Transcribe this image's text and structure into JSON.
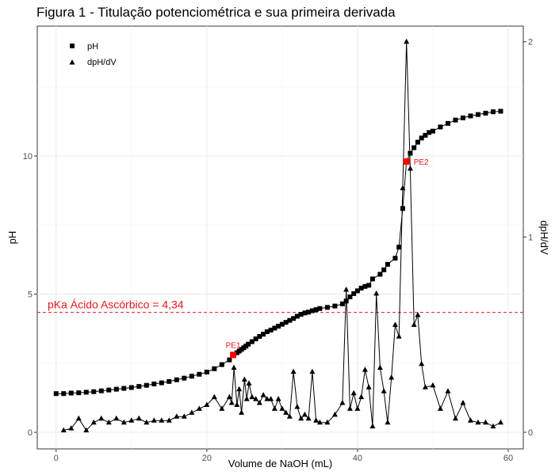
{
  "title": "Figura 1 - Titulação potenciométrica e sua primeira derivada",
  "chart_data": {
    "type": "line",
    "xlabel": "Volume de NaOH (mL)",
    "ylabel": "pH",
    "ylabel_right": "dpH/dV",
    "xlim": [
      -2.5,
      62
    ],
    "ylim": [
      -0.6,
      14.7
    ],
    "ylim_right": [
      -0.085,
      2.08
    ],
    "x_ticks": [
      0,
      20,
      40,
      60
    ],
    "y_ticks": [
      0,
      5,
      10
    ],
    "y_ticks_right": [
      0,
      1,
      2
    ],
    "grid": true,
    "legend": {
      "position": "top-left",
      "entries": [
        {
          "label": "pH",
          "marker": "square"
        },
        {
          "label": "dpH/dV",
          "marker": "triangle"
        }
      ]
    },
    "hline": {
      "y": 4.34,
      "label": "pKa Ácido Ascórbico = 4,34",
      "color": "#e41a1c"
    },
    "points": [
      {
        "label": "PE1",
        "x": 23.5,
        "y": 2.8,
        "color": "#ff0000"
      },
      {
        "label": "PE2",
        "x": 46.5,
        "y": 9.8,
        "color": "#ff0000"
      }
    ],
    "series": [
      {
        "name": "pH",
        "marker": "square",
        "axis": "left",
        "x": [
          0,
          1,
          2,
          3,
          4,
          5,
          6,
          7,
          8,
          9,
          10,
          11,
          12,
          13,
          14,
          15,
          16,
          17,
          18,
          19,
          20,
          21,
          22,
          23,
          23.5,
          24,
          24.3,
          24.6,
          24.9,
          25.2,
          25.5,
          26,
          26.5,
          27,
          27.5,
          28,
          28.5,
          29,
          29.5,
          30,
          30.5,
          31,
          31.5,
          32,
          32.5,
          33,
          33.5,
          34,
          34.5,
          35,
          36,
          37,
          38,
          38.5,
          39,
          39.5,
          40,
          40.5,
          41,
          41.5,
          42,
          43,
          43.5,
          44,
          45,
          45.5,
          46,
          46.5,
          47,
          47.5,
          48,
          48.5,
          49,
          49.5,
          50,
          51,
          52,
          53,
          54,
          55,
          56,
          57,
          58,
          59
        ],
        "y": [
          1.4,
          1.4,
          1.42,
          1.43,
          1.45,
          1.47,
          1.5,
          1.53,
          1.56,
          1.59,
          1.62,
          1.66,
          1.7,
          1.75,
          1.79,
          1.84,
          1.9,
          1.96,
          2.03,
          2.1,
          2.18,
          2.3,
          2.45,
          2.62,
          2.8,
          2.88,
          2.94,
          3.0,
          3.06,
          3.12,
          3.19,
          3.28,
          3.38,
          3.47,
          3.55,
          3.64,
          3.7,
          3.77,
          3.84,
          3.91,
          3.98,
          4.05,
          4.12,
          4.2,
          4.27,
          4.32,
          4.35,
          4.4,
          4.44,
          4.48,
          4.52,
          4.57,
          4.65,
          4.75,
          4.9,
          5.02,
          5.12,
          5.22,
          5.28,
          5.32,
          5.55,
          5.72,
          5.88,
          6.08,
          6.3,
          6.7,
          8.1,
          9.8,
          10.1,
          10.3,
          10.5,
          10.65,
          10.75,
          10.85,
          10.9,
          11.05,
          11.18,
          11.3,
          11.38,
          11.45,
          11.5,
          11.55,
          11.6,
          11.62
        ]
      },
      {
        "name": "dpH/dV",
        "marker": "triangle",
        "axis": "right",
        "x": [
          1,
          2,
          3,
          4,
          5,
          6,
          7,
          8,
          9,
          10,
          11,
          12,
          13,
          14,
          15,
          16,
          17,
          18,
          19,
          20,
          21,
          22,
          23,
          23.3,
          23.6,
          24,
          24.3,
          24.6,
          25,
          25.3,
          25.6,
          26,
          26.5,
          27,
          27.5,
          28,
          28.5,
          29,
          29.5,
          30,
          30.5,
          31,
          31.5,
          32,
          32.5,
          33,
          33.5,
          34,
          34.5,
          35,
          36,
          37,
          38,
          38.5,
          39,
          39.5,
          40,
          40.5,
          41,
          41.5,
          42,
          42.5,
          43,
          43.5,
          44,
          44.5,
          45,
          45.5,
          46,
          46.5,
          47,
          47.5,
          48,
          48.5,
          49,
          50,
          51,
          52,
          53,
          54,
          55,
          56,
          57,
          58,
          59
        ],
        "y": [
          0.01,
          0.02,
          0.07,
          0.01,
          0.05,
          0.07,
          0.05,
          0.07,
          0.05,
          0.06,
          0.07,
          0.05,
          0.06,
          0.06,
          0.06,
          0.08,
          0.08,
          0.1,
          0.12,
          0.14,
          0.18,
          0.12,
          0.18,
          0.15,
          0.33,
          0.14,
          0.22,
          0.1,
          0.27,
          0.17,
          0.25,
          0.18,
          0.17,
          0.15,
          0.19,
          0.17,
          0.17,
          0.12,
          0.17,
          0.12,
          0.1,
          0.08,
          0.31,
          0.13,
          0.07,
          0.09,
          0.07,
          0.31,
          0.06,
          0.05,
          0.05,
          0.09,
          0.15,
          0.73,
          0.12,
          0.2,
          0.12,
          0.18,
          0.32,
          0.23,
          0.03,
          0.71,
          0.33,
          0.21,
          0.05,
          0.28,
          0.55,
          0.49,
          1.25,
          2.0,
          1.35,
          0.55,
          0.6,
          0.35,
          0.23,
          0.24,
          0.12,
          0.21,
          0.07,
          0.15,
          0.06,
          0.05,
          0.05,
          0.03,
          0.05
        ]
      }
    ]
  }
}
